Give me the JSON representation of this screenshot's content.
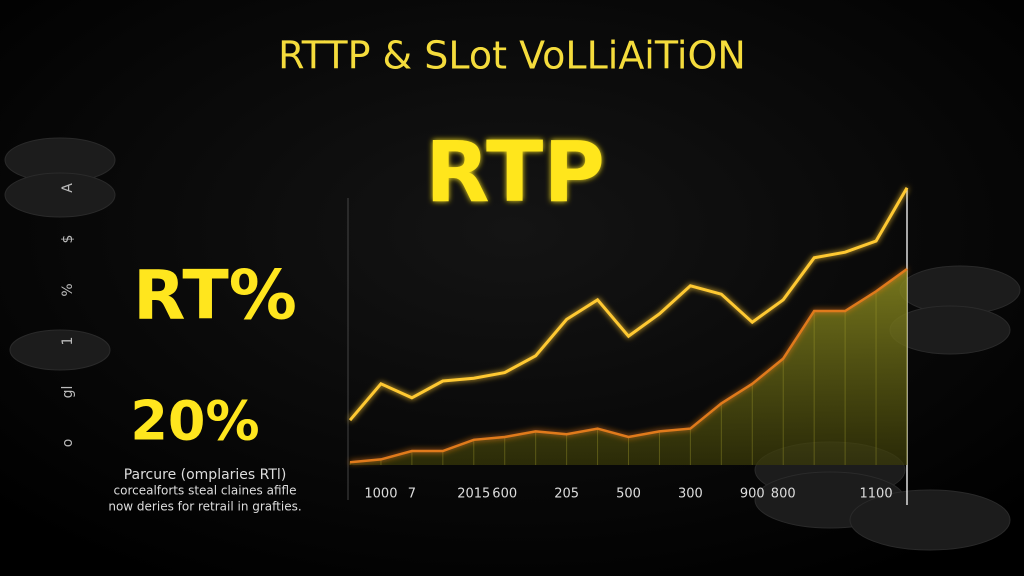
{
  "chart_data": {
    "type": "line",
    "title": "RTTP & SLot VoLLiAiTiON",
    "annotations": [
      "RTP",
      "RT%",
      "20%"
    ],
    "side_labels": [
      "A",
      "$",
      "%",
      "1",
      "gl",
      "o"
    ],
    "caption": [
      "Parcure (omplaries RTl)",
      "corcealforts steal claines afifle",
      "now deries for retrail in grafties."
    ],
    "categories": [
      null,
      "1000",
      "7",
      null,
      "2015",
      "600",
      null,
      "205",
      null,
      "500",
      null,
      "300",
      null,
      "900",
      "800",
      null,
      null,
      "1100",
      null
    ],
    "series": [
      {
        "color": "#ffc933",
        "values": [
          16,
          29,
          24,
          30,
          31,
          33,
          39,
          52,
          59,
          46,
          54,
          64,
          61,
          51,
          59,
          74,
          76,
          80,
          99
        ]
      },
      {
        "color": "#e07a1a",
        "values": [
          1,
          2,
          5,
          5,
          9,
          10,
          12,
          11,
          13,
          10,
          12,
          13,
          22,
          29,
          38,
          55,
          55,
          62,
          70
        ]
      }
    ],
    "ylim": [
      0,
      100
    ]
  }
}
